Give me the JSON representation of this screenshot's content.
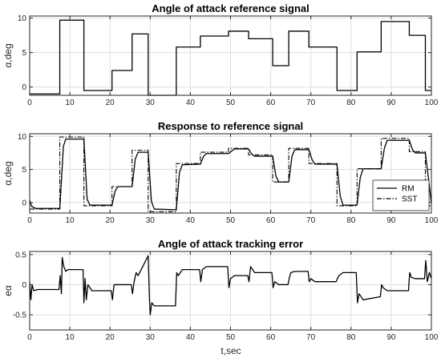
{
  "figure": {
    "xlabel": "t,sec"
  },
  "chart_data": [
    {
      "type": "line",
      "title": "Angle of attack reference signal",
      "xlabel": "",
      "ylabel": "α,deg",
      "xlim": [
        0,
        100
      ],
      "ylim": [
        -1.2,
        10.3
      ],
      "xticks": [
        0,
        10,
        20,
        30,
        40,
        50,
        60,
        70,
        80,
        90,
        100
      ],
      "yticks": [
        0,
        5,
        10
      ],
      "grid": true,
      "legend": null,
      "series": [
        {
          "style": "solid",
          "color": "#000000",
          "x": [
            0,
            7.5,
            7.5,
            13.5,
            13.5,
            20.5,
            20.5,
            25.5,
            25.5,
            29.5,
            29.5,
            36.5,
            36.5,
            42.5,
            42.5,
            49.5,
            49.5,
            54.5,
            54.5,
            60.5,
            60.5,
            64.5,
            64.5,
            69.5,
            69.5,
            76.5,
            76.5,
            81.5,
            81.5,
            87.5,
            87.5,
            94.5,
            94.5,
            98.5,
            98.5,
            100
          ],
          "y": [
            -1,
            -1,
            9.7,
            9.7,
            -0.5,
            -0.5,
            2.4,
            2.4,
            7.7,
            7.7,
            -1.2,
            -1.2,
            5.8,
            5.8,
            7.4,
            7.4,
            8.1,
            8.1,
            7.0,
            7.0,
            3.1,
            3.1,
            8.1,
            8.1,
            5.8,
            5.8,
            -0.5,
            -0.5,
            5.1,
            5.1,
            9.5,
            9.5,
            7.5,
            7.5,
            -0.5,
            -0.5
          ]
        }
      ]
    },
    {
      "type": "line",
      "title": "Response to reference signal",
      "xlabel": "",
      "ylabel": "α,deg",
      "xlim": [
        0,
        100
      ],
      "ylim": [
        -1.6,
        10.4
      ],
      "xticks": [
        0,
        10,
        20,
        30,
        40,
        50,
        60,
        70,
        80,
        90,
        100
      ],
      "yticks": [
        0,
        5,
        10
      ],
      "grid": true,
      "legend": "bottom-right",
      "series": [
        {
          "name": "RM",
          "style": "solid",
          "color": "#000000",
          "x": [
            0,
            0.5,
            1.5,
            7.5,
            8.4,
            9.0,
            13.5,
            14.3,
            15.0,
            20.5,
            21.3,
            22.0,
            25.5,
            26.3,
            27.0,
            29.5,
            30.3,
            31.0,
            36.5,
            37.3,
            38.0,
            42.5,
            43.3,
            44.0,
            49.5,
            50.3,
            51.0,
            54.5,
            55.3,
            56.0,
            60.5,
            61.3,
            62.0,
            64.5,
            65.3,
            66.0,
            69.5,
            70.3,
            71.0,
            76.5,
            77.3,
            78.0,
            81.5,
            82.3,
            83.0,
            87.5,
            88.3,
            89.0,
            94.5,
            95.3,
            96.0,
            98.5,
            99.3,
            100
          ],
          "y": [
            0.3,
            -0.6,
            -0.9,
            -0.9,
            8.5,
            9.6,
            9.6,
            0.5,
            -0.4,
            -0.4,
            1.8,
            2.4,
            2.4,
            6.6,
            7.6,
            7.6,
            0.2,
            -1.0,
            -1.1,
            4.6,
            5.7,
            5.8,
            7.0,
            7.4,
            7.4,
            7.8,
            8.1,
            8.1,
            7.3,
            7.0,
            7.0,
            4.0,
            3.1,
            3.1,
            7.0,
            8.0,
            8.0,
            6.5,
            5.8,
            5.8,
            1.0,
            -0.4,
            -0.4,
            3.8,
            5.1,
            5.1,
            8.2,
            9.4,
            9.4,
            8.0,
            7.5,
            7.5,
            3.5,
            -0.2
          ]
        },
        {
          "name": "SST",
          "style": "dashdot",
          "color": "#000000",
          "x": [
            0,
            7.5,
            7.5,
            13.5,
            13.5,
            20.5,
            20.5,
            25.5,
            25.5,
            29.5,
            29.5,
            36.5,
            36.5,
            42.5,
            42.5,
            49.5,
            49.5,
            54.5,
            54.5,
            60.5,
            60.5,
            64.5,
            64.5,
            69.5,
            69.5,
            76.5,
            76.5,
            81.5,
            81.5,
            87.5,
            87.5,
            94.5,
            94.5,
            98.5,
            98.5,
            100
          ],
          "y": [
            -1,
            -1,
            9.9,
            9.9,
            -0.5,
            -0.5,
            2.4,
            2.4,
            7.9,
            7.9,
            -1.4,
            -1.4,
            5.9,
            5.9,
            7.6,
            7.6,
            8.2,
            8.2,
            7.2,
            7.2,
            3.1,
            3.1,
            8.2,
            8.2,
            5.9,
            5.9,
            -0.5,
            -0.5,
            5.1,
            5.1,
            9.7,
            9.7,
            7.7,
            7.7,
            -0.5,
            -0.5
          ]
        }
      ]
    },
    {
      "type": "line",
      "title": "Angle of attack tracking error",
      "xlabel": "t,sec",
      "ylabel": "eα",
      "xlim": [
        0,
        100
      ],
      "ylim": [
        -0.75,
        0.55
      ],
      "xticks": [
        0,
        10,
        20,
        30,
        40,
        50,
        60,
        70,
        80,
        90,
        100
      ],
      "yticks": [
        -0.5,
        0,
        0.5
      ],
      "grid": true,
      "legend": null,
      "series": [
        {
          "style": "solid",
          "color": "#000000",
          "x": [
            0,
            0.3,
            0.6,
            1,
            2,
            7.3,
            7.6,
            7.9,
            8.1,
            8.5,
            9,
            9.5,
            13.3,
            13.5,
            13.8,
            14.1,
            14.5,
            15,
            15.5,
            20.3,
            20.6,
            21,
            21.5,
            25.3,
            25.6,
            26,
            26.5,
            27,
            29.5,
            29.8,
            30,
            30.4,
            31,
            32,
            36.3,
            36.6,
            37,
            38,
            42.3,
            42.6,
            43,
            44,
            49.3,
            49.6,
            50,
            51,
            54.3,
            54.6,
            55,
            56,
            60.3,
            60.6,
            61,
            62,
            64.3,
            64.6,
            65,
            66,
            69.3,
            69.6,
            70,
            71,
            76.3,
            76.6,
            77,
            78,
            81.3,
            81.6,
            82,
            83,
            87.3,
            87.6,
            88,
            89,
            94.3,
            94.6,
            95,
            96,
            98.3,
            98.6,
            99,
            99.5,
            100
          ],
          "y": [
            0.05,
            -0.25,
            0.0,
            -0.1,
            -0.08,
            -0.08,
            0.15,
            -0.15,
            0.45,
            0.3,
            0.22,
            0.25,
            0.25,
            -0.3,
            0.1,
            -0.25,
            0.0,
            -0.05,
            -0.1,
            -0.1,
            -0.25,
            0.0,
            0.0,
            0.0,
            -0.15,
            0.05,
            0.2,
            0.15,
            0.48,
            -0.2,
            -0.5,
            -0.3,
            -0.35,
            -0.35,
            -0.35,
            0.2,
            0.15,
            0.25,
            0.25,
            0.05,
            0.25,
            0.3,
            0.3,
            -0.05,
            0.1,
            0.15,
            0.15,
            0.05,
            0.3,
            0.2,
            0.2,
            -0.05,
            0.05,
            0.0,
            0.0,
            0.1,
            0.2,
            0.22,
            0.22,
            0.05,
            0.1,
            0.05,
            0.05,
            0.1,
            0.15,
            0.2,
            0.2,
            -0.3,
            -0.15,
            -0.25,
            -0.2,
            0.0,
            -0.05,
            -0.1,
            -0.1,
            0.2,
            0.12,
            0.1,
            0.1,
            0.4,
            0.05,
            0.2,
            0.1
          ]
        }
      ]
    }
  ]
}
